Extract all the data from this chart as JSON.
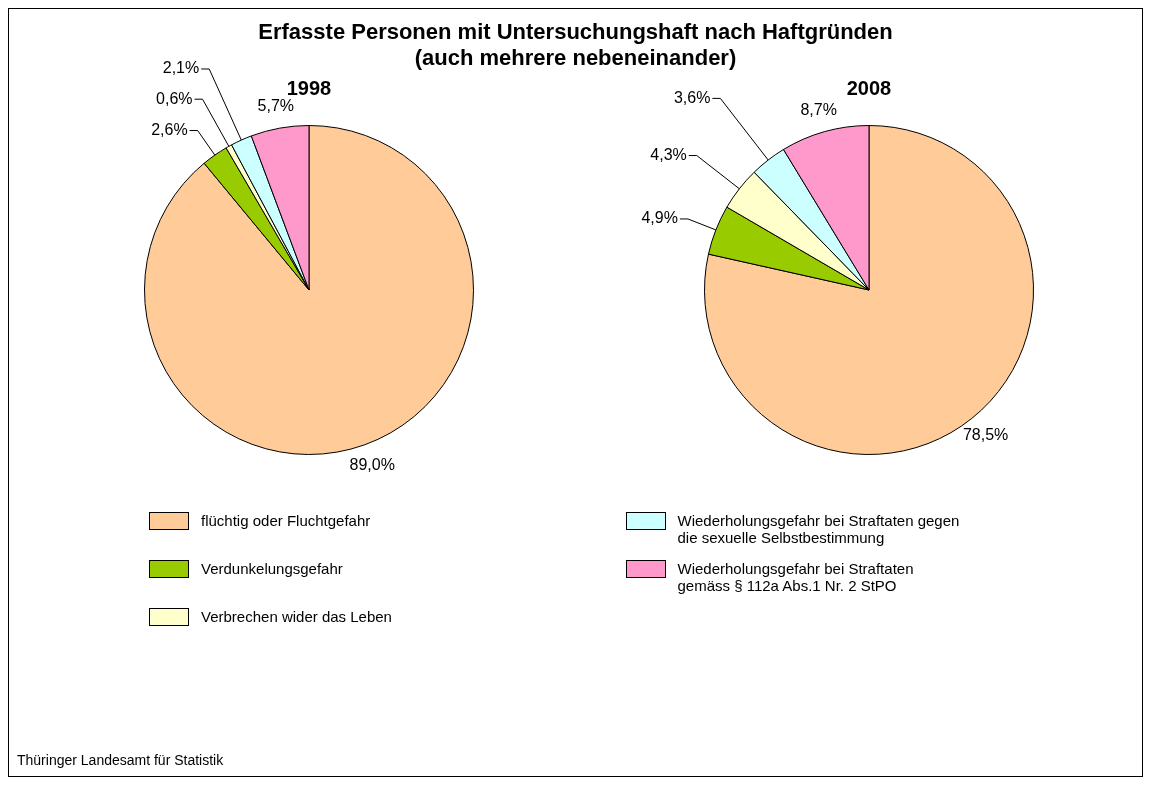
{
  "chart_data": [
    {
      "type": "pie",
      "title": "Erfasste Personen mit Untersuchungshaft nach Haftgründen\n(auch mehrere nebeneinander)",
      "subtitle": "1998",
      "categories": [
        "flüchtig oder Fluchtgefahr",
        "Verdunkelungsgefahr",
        "Verbrechen wider das Leben",
        "Wiederholungsgefahr bei Straftaten gegen die sexuelle Selbstbestimmung",
        "Wiederholungsgefahr bei Straftaten gemäss § 112a Abs.1 Nr. 2 StPO"
      ],
      "values": [
        89.0,
        2.6,
        0.6,
        2.1,
        5.7
      ],
      "colors": [
        "#ffcc99",
        "#99cc00",
        "#ffffcc",
        "#ccffff",
        "#ff99cc"
      ],
      "value_labels": [
        "89,0%",
        "2,6%",
        "0,6%",
        "2,1%",
        "5,7%"
      ],
      "legend": "bottom",
      "annotations": [
        "Thüringer Landesamt für Statistik"
      ]
    },
    {
      "type": "pie",
      "subtitle": "2008",
      "categories": [
        null,
        null,
        null,
        null,
        null
      ],
      "values": [
        78.5,
        4.9,
        4.3,
        3.6,
        8.7
      ],
      "colors": [
        "#ffcc99",
        "#99cc00",
        "#ffffcc",
        "#ccffff",
        "#ff99cc"
      ],
      "value_labels": [
        "78,5%",
        "4,9%",
        "4,3%",
        "3,6%",
        "8,7%"
      ]
    }
  ]
}
